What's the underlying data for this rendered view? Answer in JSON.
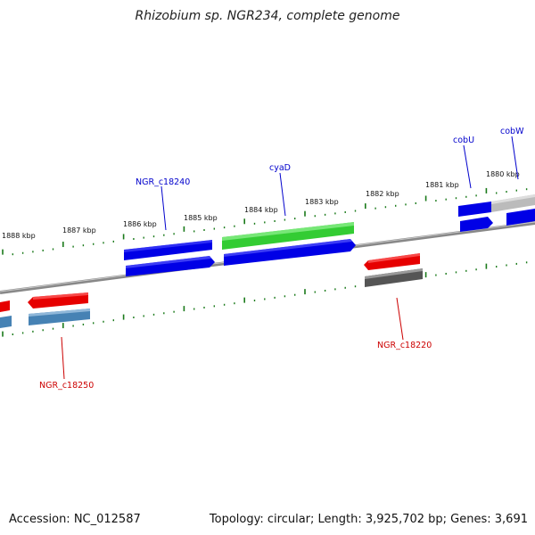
{
  "title": "Rhizobium sp. NGR234, complete genome",
  "footer": {
    "accession": "Accession: NC_012587",
    "summary": "Topology: circular; Length: 3,925,702 bp; Genes: 3,691"
  },
  "ruler_labels": [
    "1888 kbp",
    "1887 kbp",
    "1886 kbp",
    "1885 kbp",
    "1884 kbp",
    "1883 kbp",
    "1882 kbp",
    "1881 kbp",
    "1880 kbp"
  ],
  "gene_labels": {
    "cobW": "cobW",
    "cobU": "cobU",
    "cyaD": "cyaD",
    "NGR_c18240": "NGR_c18240",
    "NGR_c18220": "NGR_c18220",
    "NGR_c18250": "NGR_c18250"
  },
  "colors": {
    "forward_label": "#0000cc",
    "reverse_label": "#cc0000",
    "cds_blue": "#0000e6",
    "gene_green": "#33cc33",
    "gene_red": "#e60000",
    "gene_gray": "#555555",
    "gene_steelblue": "#4682b4",
    "gene_lightgray": "#bbbbbb",
    "ticks": "#1a7a1a",
    "backbone": "#888888"
  }
}
